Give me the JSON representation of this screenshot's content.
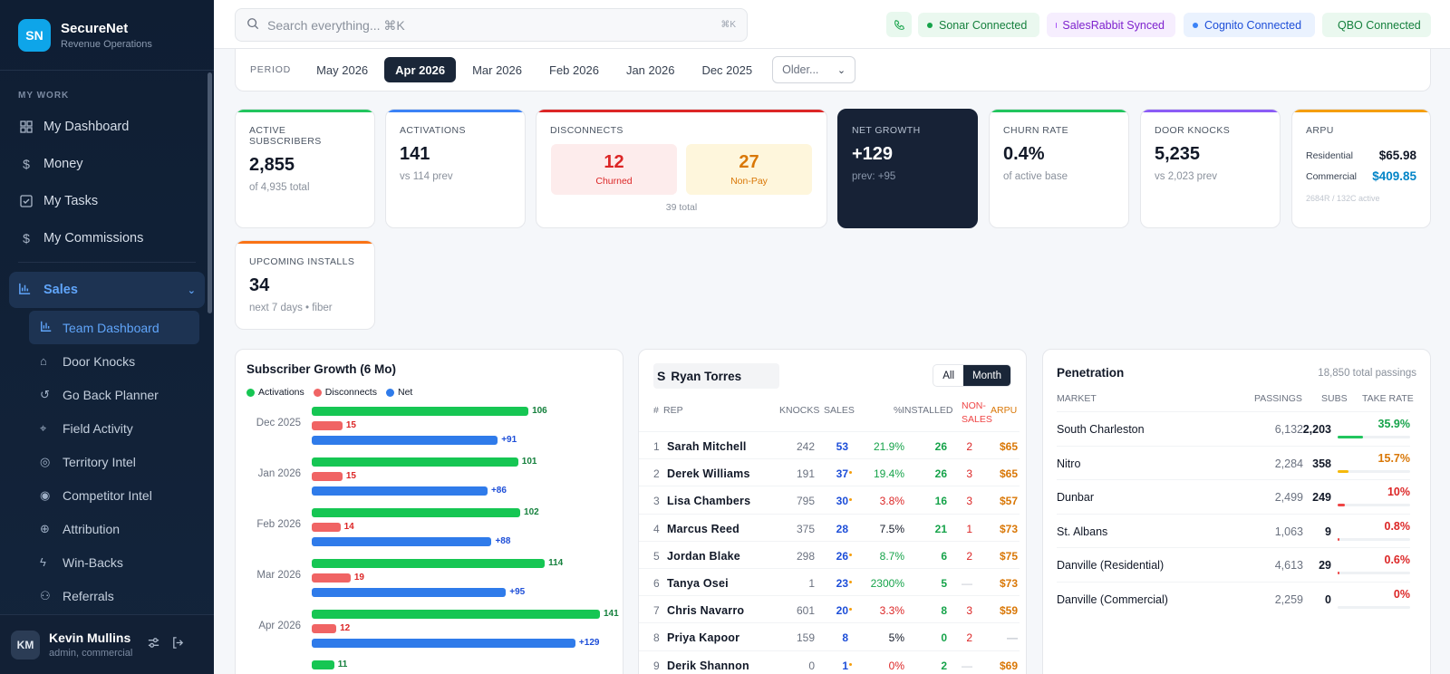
{
  "brand": {
    "logo": "SN",
    "name": "SecureNet",
    "subtitle": "Revenue Operations"
  },
  "sidebar": {
    "section_label": "MY WORK",
    "items": [
      {
        "label": "My Dashboard",
        "icon": "dashboard-icon"
      },
      {
        "label": "Money",
        "icon": "dollar-icon"
      },
      {
        "label": "My Tasks",
        "icon": "checkbox-icon"
      },
      {
        "label": "My Commissions",
        "icon": "dollar-icon"
      }
    ],
    "group": {
      "label": "Sales",
      "icon": "bar-chart-icon"
    },
    "sub_items": [
      {
        "label": "Team Dashboard",
        "icon": "bar-chart-icon",
        "active": true
      },
      {
        "label": "Door Knocks",
        "icon": "building-icon"
      },
      {
        "label": "Go Back Planner",
        "icon": "rotate-icon"
      },
      {
        "label": "Field Activity",
        "icon": "pin-icon"
      },
      {
        "label": "Territory Intel",
        "icon": "compass-icon"
      },
      {
        "label": "Competitor Intel",
        "icon": "target-icon"
      },
      {
        "label": "Attribution",
        "icon": "crosshair-icon"
      },
      {
        "label": "Win-Backs",
        "icon": "bolt-icon"
      },
      {
        "label": "Referrals",
        "icon": "user-plus-icon"
      }
    ],
    "user": {
      "initials": "KM",
      "name": "Kevin Mullins",
      "role": "admin, commercial"
    }
  },
  "topbar": {
    "search_placeholder": "Search everything... ⌘K",
    "search_shortcut": "⌘K",
    "statuses": [
      {
        "label": "Sonar Connected",
        "dot": "#16a34a",
        "bg": "#eaf8ef",
        "color": "#15803d"
      },
      {
        "label": "SalesRabbit Synced",
        "dot": "#a855f7",
        "bg": "#f6eefe",
        "color": "#7e22ce"
      },
      {
        "label": "Cognito Connected",
        "dot": "#3b82f6",
        "bg": "#eaf2fe",
        "color": "#1d4ed8"
      },
      {
        "label": "QBO Connected",
        "dot": "#16a34a",
        "bg": "#eaf8ef",
        "color": "#15803d"
      }
    ]
  },
  "period": {
    "label": "PERIOD",
    "tabs": [
      "May 2026",
      "Apr 2026",
      "Mar 2026",
      "Feb 2026",
      "Jan 2026",
      "Dec 2025"
    ],
    "active": "Apr 2026",
    "older": "Older..."
  },
  "kpis": {
    "active_subscribers": {
      "label": "ACTIVE SUBSCRIBERS",
      "value": "2,855",
      "sub": "of 4,935 total"
    },
    "activations": {
      "label": "ACTIVATIONS",
      "value": "141",
      "sub": "vs 114 prev"
    },
    "disconnects": {
      "label": "DISCONNECTS",
      "churned": "12",
      "churned_label": "Churned",
      "nonpay": "27",
      "nonpay_label": "Non-Pay",
      "total": "39 total"
    },
    "net_growth": {
      "label": "NET GROWTH",
      "value": "+129",
      "sub": "prev: +95"
    },
    "churn_rate": {
      "label": "CHURN RATE",
      "value": "0.4%",
      "sub": "of active base"
    },
    "door_knocks": {
      "label": "DOOR KNOCKS",
      "value": "5,235",
      "sub": "vs 2,023 prev"
    },
    "arpu": {
      "label": "ARPU",
      "residential_label": "Residential",
      "residential": "$65.98",
      "commercial_label": "Commercial",
      "commercial": "$409.85",
      "note": "2684R / 132C active"
    },
    "upcoming_installs": {
      "label": "UPCOMING INSTALLS",
      "value": "34",
      "sub": "next 7 days • fiber"
    }
  },
  "growth_chart": {
    "title": "Subscriber Growth (6 Mo)",
    "legend": [
      {
        "name": "Activations",
        "color": "#16c653"
      },
      {
        "name": "Disconnects",
        "color": "#f06464"
      },
      {
        "name": "Net",
        "color": "#2f7bea"
      }
    ],
    "max": 141,
    "months": [
      {
        "label": "Dec 2025",
        "activations": 106,
        "disconnects": 15,
        "net": 91
      },
      {
        "label": "Jan 2026",
        "activations": 101,
        "disconnects": 15,
        "net": 86
      },
      {
        "label": "Feb 2026",
        "activations": 102,
        "disconnects": 14,
        "net": 88
      },
      {
        "label": "Mar 2026",
        "activations": 114,
        "disconnects": 19,
        "net": 95
      },
      {
        "label": "Apr 2026",
        "activations": 141,
        "disconnects": 12,
        "net": 129
      },
      {
        "label": "",
        "activations": 11,
        "disconnects": null,
        "net": null
      }
    ]
  },
  "leaderboard": {
    "filter_value": "Ryan Torres",
    "filter_prefix": "S",
    "toggle": [
      "All",
      "Month"
    ],
    "toggle_active": "Month",
    "headers": {
      "rank": "#",
      "rep": "REP",
      "knocks": "KNOCKS",
      "sales": "SALES",
      "pct": "%",
      "installed": "INSTALLED",
      "nonsales_1": "NON-",
      "nonsales_2": "SALES",
      "arpu": "ARPU"
    },
    "rows": [
      {
        "rank": "1",
        "rep": "Sarah Mitchell",
        "knocks": "242",
        "sales": "53",
        "dot": false,
        "pct": "21.9%",
        "pct_color": "#16a34a",
        "installed": "26",
        "nonsales": "2",
        "arpu": "$65"
      },
      {
        "rank": "2",
        "rep": "Derek Williams",
        "knocks": "191",
        "sales": "37",
        "dot": true,
        "pct": "19.4%",
        "pct_color": "#16a34a",
        "installed": "26",
        "nonsales": "3",
        "arpu": "$65"
      },
      {
        "rank": "3",
        "rep": "Lisa Chambers",
        "knocks": "795",
        "sales": "30",
        "dot": true,
        "pct": "3.8%",
        "pct_color": "#dc2626",
        "installed": "16",
        "nonsales": "3",
        "arpu": "$57"
      },
      {
        "rank": "4",
        "rep": "Marcus Reed",
        "knocks": "375",
        "sales": "28",
        "dot": false,
        "pct": "7.5%",
        "pct_color": "#111827",
        "installed": "21",
        "nonsales": "1",
        "arpu": "$73"
      },
      {
        "rank": "5",
        "rep": "Jordan Blake",
        "knocks": "298",
        "sales": "26",
        "dot": true,
        "pct": "8.7%",
        "pct_color": "#16a34a",
        "installed": "6",
        "nonsales": "2",
        "arpu": "$75"
      },
      {
        "rank": "6",
        "rep": "Tanya Osei",
        "knocks": "1",
        "sales": "23",
        "dot": true,
        "pct": "2300%",
        "pct_color": "#16a34a",
        "installed": "5",
        "nonsales": "—",
        "arpu": "$73"
      },
      {
        "rank": "7",
        "rep": "Chris Navarro",
        "knocks": "601",
        "sales": "20",
        "dot": true,
        "pct": "3.3%",
        "pct_color": "#dc2626",
        "installed": "8",
        "nonsales": "3",
        "arpu": "$59"
      },
      {
        "rank": "8",
        "rep": "Priya Kapoor",
        "knocks": "159",
        "sales": "8",
        "dot": false,
        "pct": "5%",
        "pct_color": "#111827",
        "installed": "0",
        "nonsales": "2",
        "arpu": "—"
      },
      {
        "rank": "9",
        "rep": "Derik Shannon",
        "knocks": "0",
        "sales": "1",
        "dot": true,
        "pct": "0%",
        "pct_color": "#dc2626",
        "installed": "2",
        "nonsales": "—",
        "arpu": "$69"
      }
    ]
  },
  "penetration": {
    "title": "Penetration",
    "total": "18,850 total passings",
    "headers": {
      "market": "MARKET",
      "passings": "PASSINGS",
      "subs": "SUBS",
      "take": "TAKE RATE"
    },
    "rows": [
      {
        "market": "South Charleston",
        "passings": "6,132",
        "subs": "2,203",
        "take": "35.9%",
        "pct": 35.9,
        "color": "#16a34a",
        "fill": "#22c55e"
      },
      {
        "market": "Nitro",
        "passings": "2,284",
        "subs": "358",
        "take": "15.7%",
        "pct": 15.7,
        "color": "#d97706",
        "fill": "#f5b90b"
      },
      {
        "market": "Dunbar",
        "passings": "2,499",
        "subs": "249",
        "take": "10%",
        "pct": 10,
        "color": "#dc2626",
        "fill": "#ef4444"
      },
      {
        "market": "St. Albans",
        "passings": "1,063",
        "subs": "9",
        "take": "0.8%",
        "pct": 0.8,
        "color": "#dc2626",
        "fill": "#ef4444"
      },
      {
        "market": "Danville (Residential)",
        "passings": "4,613",
        "subs": "29",
        "take": "0.6%",
        "pct": 0.6,
        "color": "#dc2626",
        "fill": "#ef4444"
      },
      {
        "market": "Danville (Commercial)",
        "passings": "2,259",
        "subs": "0",
        "take": "0%",
        "pct": 0,
        "color": "#dc2626",
        "fill": "#ef4444"
      }
    ]
  }
}
